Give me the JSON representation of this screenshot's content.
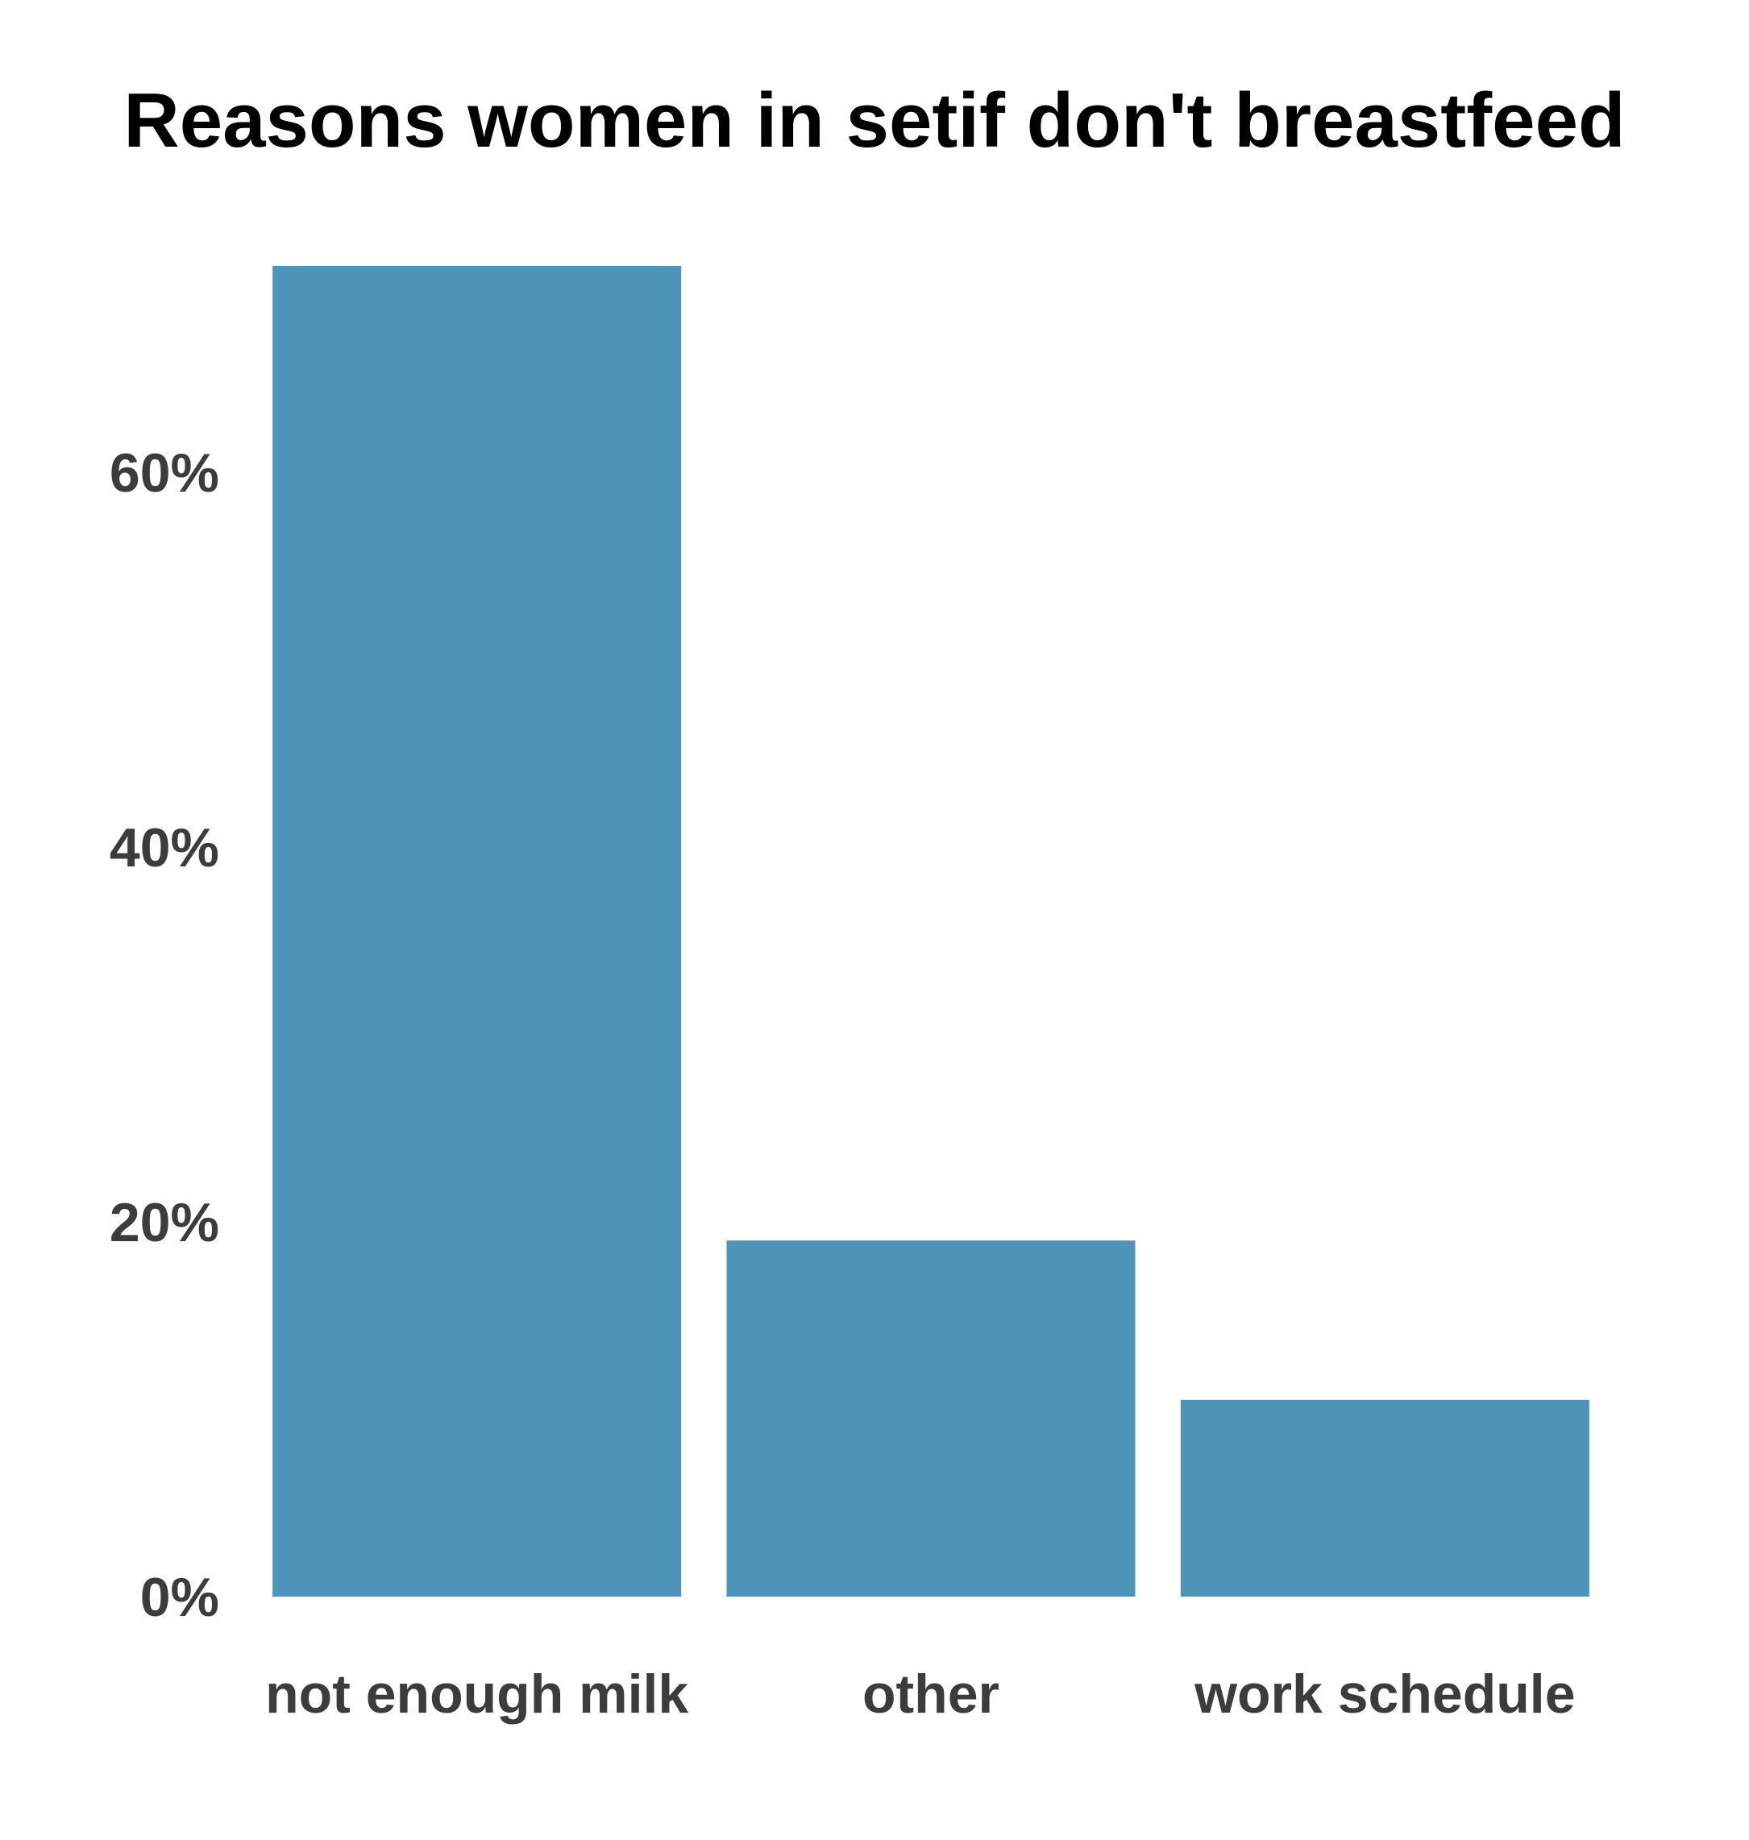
{
  "chart_data": {
    "type": "bar",
    "title": "Reasons women in setif don't breastfeed",
    "xlabel": "",
    "ylabel": "",
    "categories": [
      "not enough milk",
      "other",
      "work schedule"
    ],
    "values": [
      71,
      19,
      10.5
    ],
    "ylim": [
      0,
      71
    ],
    "yticks": [
      0,
      20,
      40,
      60
    ],
    "ytick_labels": [
      "0%",
      "20%",
      "40%",
      "60%"
    ],
    "bar_color": "#4d94b8",
    "grid": false,
    "legend": "none"
  }
}
